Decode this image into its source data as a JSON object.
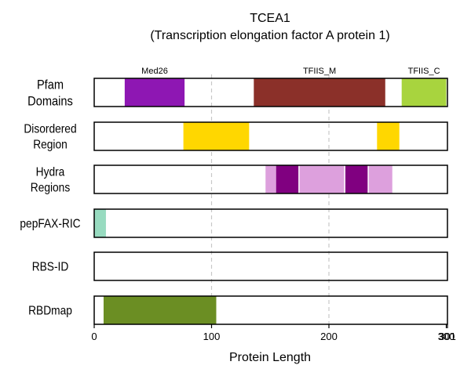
{
  "chart_data": {
    "type": "bar",
    "title": "TCEA1",
    "subtitle": "(Transcription elongation factor A protein 1)",
    "xlabel": "Protein Length",
    "xlim": [
      0,
      301
    ],
    "x_ticks": [
      {
        "value": 0,
        "label": "0"
      },
      {
        "value": 100,
        "label": "100"
      },
      {
        "value": 200,
        "label": "200"
      },
      {
        "value": 300,
        "label": "300"
      },
      {
        "value": 301,
        "label": "301"
      }
    ],
    "gridlines_x": [
      100,
      200
    ],
    "tracks": [
      {
        "label": "Pfam\nDomains",
        "segments": [
          {
            "start": 26,
            "end": 77,
            "color": "#8e17b3",
            "name": "Med26"
          },
          {
            "start": 136,
            "end": 248,
            "color": "#8b3029",
            "name": "TFIIS_M"
          },
          {
            "start": 262,
            "end": 300,
            "color": "#a8d43e",
            "name": "TFIIS_C"
          }
        ]
      },
      {
        "label": "Disordered\nRegion",
        "segments": [
          {
            "start": 76,
            "end": 132,
            "color": "#ffd700"
          },
          {
            "start": 241,
            "end": 260,
            "color": "#ffd700"
          }
        ]
      },
      {
        "label": "Hydra\nRegions",
        "segments": [
          {
            "start": 146,
            "end": 155,
            "color": "#dda0dd"
          },
          {
            "start": 155,
            "end": 174,
            "color": "#800080"
          },
          {
            "start": 175,
            "end": 213,
            "color": "#dda0dd"
          },
          {
            "start": 214,
            "end": 233,
            "color": "#800080"
          },
          {
            "start": 234,
            "end": 254,
            "color": "#dda0dd"
          }
        ]
      },
      {
        "label": "pepFAX-RIC",
        "segments": [
          {
            "start": 0,
            "end": 10,
            "color": "#98dbc0"
          }
        ]
      },
      {
        "label": "RBS-ID",
        "segments": []
      },
      {
        "label": "RBDmap",
        "segments": [
          {
            "start": 8,
            "end": 104,
            "color": "#6b8e23"
          }
        ]
      }
    ]
  }
}
